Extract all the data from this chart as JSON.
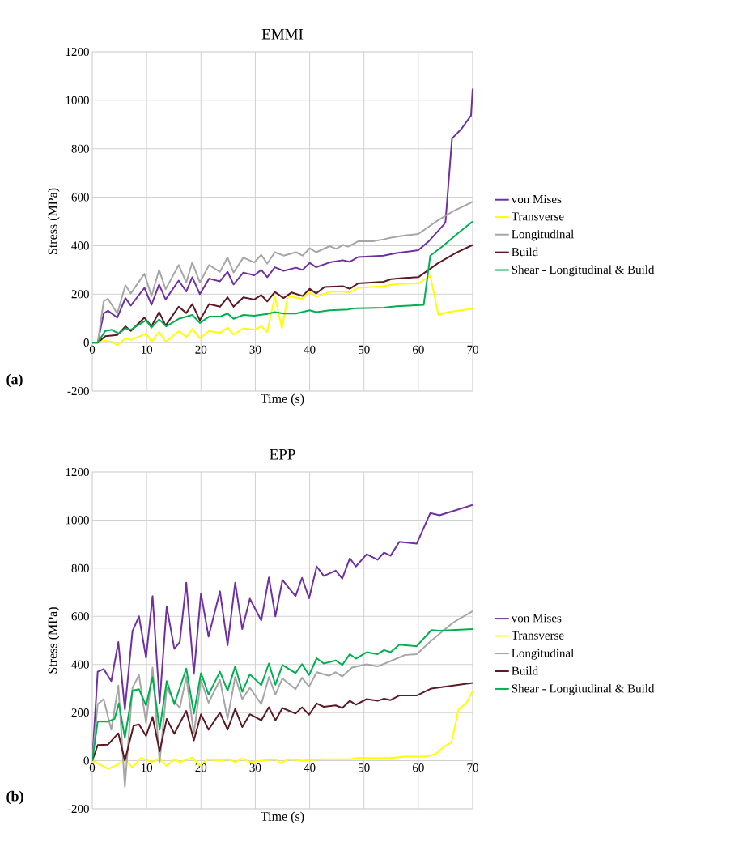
{
  "chart_data": [
    {
      "type": "line",
      "title": "EMMI",
      "xlabel": "Time (s)",
      "ylabel": "Stress (MPa)",
      "xlim": [
        0,
        70
      ],
      "ylim": [
        -200,
        1200
      ],
      "xticks": [
        0,
        10,
        20,
        30,
        40,
        50,
        60,
        70
      ],
      "yticks": [
        -200,
        0,
        200,
        400,
        600,
        800,
        1000,
        1200
      ],
      "grid": true,
      "legend": "right",
      "annotations": [
        "(a)"
      ],
      "series": [
        {
          "name": "von Mises",
          "color": "#7030a0",
          "x": [
            0,
            1,
            2.1,
            2.9,
            4.6,
            6.1,
            7.1,
            9.6,
            10.9,
            12.3,
            13.5,
            15.9,
            17.3,
            18.4,
            19.8,
            21.5,
            23.5,
            24.9,
            26,
            27.8,
            29.8,
            31.1,
            32.2,
            33.6,
            35.2,
            37.5,
            38.7,
            40,
            41.2,
            43.7,
            46.1,
            47.4,
            48.9,
            53.6,
            56,
            60,
            62,
            64.7,
            65,
            66.2,
            67.9,
            69.7,
            70
          ],
          "values": [
            0,
            0,
            120,
            131,
            103,
            184,
            153,
            226,
            156,
            240,
            178,
            256,
            211,
            270,
            200,
            264,
            253,
            292,
            240,
            289,
            278,
            300,
            270,
            311,
            296,
            309,
            300,
            329,
            311,
            331,
            340,
            333,
            353,
            359,
            370,
            381,
            420,
            487,
            498,
            842,
            881,
            937,
            1048
          ]
        },
        {
          "name": "Transverse",
          "color": "#ffff00",
          "x": [
            0,
            1,
            2.4,
            3.6,
            4.6,
            6.1,
            7.1,
            9.9,
            10.9,
            12.3,
            13.5,
            16,
            17.3,
            18.4,
            19.8,
            21.5,
            23.5,
            24.9,
            26,
            27.8,
            29.8,
            31.1,
            32.2,
            33.6,
            34.9,
            36,
            38.7,
            40,
            41.2,
            43.7,
            46.1,
            47.4,
            48.9,
            53.6,
            56,
            60,
            62.2,
            63.7,
            65.4,
            70
          ],
          "values": [
            0,
            0,
            9,
            3,
            -11,
            18,
            11,
            37,
            3,
            44,
            3,
            48,
            22,
            56,
            18,
            48,
            40,
            62,
            33,
            59,
            53,
            67,
            44,
            192,
            59,
            192,
            181,
            209,
            189,
            209,
            211,
            207,
            226,
            233,
            242,
            244,
            276,
            114,
            126,
            140
          ]
        },
        {
          "name": "Longitudinal",
          "color": "#a6a6a6",
          "x": [
            0,
            1,
            2.1,
            2.9,
            4.6,
            6.1,
            7.1,
            9.6,
            10.9,
            12.3,
            13.5,
            15.9,
            17.3,
            18.4,
            19.8,
            21.5,
            23.5,
            24.9,
            26,
            27.8,
            29.8,
            31.1,
            32.2,
            33.6,
            35.2,
            37.5,
            38.7,
            40,
            41.2,
            43.7,
            44.9,
            46.1,
            47.1,
            48.9,
            51.6,
            53.6,
            55,
            57.5,
            60,
            63.5,
            66.4,
            70
          ],
          "values": [
            0,
            0,
            170,
            181,
            120,
            237,
            203,
            284,
            192,
            300,
            220,
            320,
            248,
            331,
            248,
            320,
            292,
            351,
            289,
            351,
            331,
            362,
            326,
            373,
            359,
            373,
            359,
            389,
            373,
            398,
            387,
            403,
            396,
            418,
            418,
            426,
            433,
            442,
            448,
            503,
            542,
            581
          ]
        },
        {
          "name": "Build",
          "color": "#5c1a24",
          "x": [
            0,
            1,
            2.4,
            4.6,
            6.1,
            7.1,
            9.6,
            10.9,
            12.3,
            13.5,
            15.9,
            17.3,
            18.4,
            19.8,
            21.5,
            23.5,
            24.9,
            26,
            27.8,
            29.8,
            31.1,
            32.2,
            33.6,
            35.2,
            36.7,
            38.7,
            40,
            41.2,
            42.7,
            46.1,
            47.4,
            48.9,
            53.6,
            55,
            57.5,
            60,
            63.5,
            66.9,
            70
          ],
          "values": [
            0,
            0,
            26,
            31,
            67,
            48,
            103,
            67,
            126,
            70,
            148,
            122,
            159,
            92,
            159,
            148,
            187,
            148,
            187,
            178,
            196,
            170,
            209,
            184,
            207,
            192,
            222,
            203,
            229,
            233,
            222,
            244,
            251,
            262,
            267,
            270,
            326,
            370,
            403
          ]
        },
        {
          "name": "Shear - Longitudinal & Build",
          "color": "#00b050",
          "x": [
            0,
            1,
            2.4,
            3.6,
            4.9,
            6.1,
            7.1,
            9.9,
            10.9,
            12.3,
            13.6,
            15.9,
            18.4,
            19.8,
            21.5,
            23.5,
            24.9,
            26,
            27.8,
            29.8,
            32.2,
            33.6,
            35.2,
            37.5,
            40,
            41.2,
            43.7,
            47.1,
            48.6,
            53.6,
            56,
            61,
            62.2,
            64.5,
            67.4,
            70
          ],
          "values": [
            0,
            0,
            48,
            53,
            37,
            59,
            53,
            92,
            62,
            96,
            67,
            98,
            114,
            81,
            107,
            107,
            120,
            98,
            114,
            111,
            118,
            126,
            120,
            120,
            133,
            126,
            133,
            137,
            142,
            144,
            150,
            156,
            359,
            398,
            453,
            500
          ]
        }
      ]
    },
    {
      "type": "line",
      "title": "EPP",
      "xlabel": "Time (s)",
      "ylabel": "Stress (MPa)",
      "xlim": [
        0,
        70
      ],
      "ylim": [
        -200,
        1200
      ],
      "xticks": [
        0,
        10,
        20,
        30,
        40,
        50,
        60,
        70
      ],
      "yticks": [
        -200,
        0,
        200,
        400,
        600,
        800,
        1000,
        1200
      ],
      "grid": true,
      "legend": "right",
      "annotations": [
        "(b)"
      ],
      "series": [
        {
          "name": "von Mises",
          "color": "#7030a0",
          "x": [
            0,
            1,
            2.1,
            3.5,
            4.8,
            6,
            7.4,
            8.6,
            9.9,
            11.1,
            12.4,
            13.7,
            15.1,
            16.1,
            17.3,
            18.7,
            20,
            21.4,
            23.5,
            24.9,
            26.3,
            27.6,
            29,
            31.1,
            32.5,
            33.7,
            35,
            37.4,
            38.6,
            39.9,
            41.3,
            42.6,
            44.8,
            46,
            47.4,
            48.5,
            50.5,
            52.5,
            53.7,
            54.9,
            56.5,
            59.7,
            62.2,
            63.9,
            70
          ],
          "values": [
            0,
            370,
            381,
            331,
            493,
            213,
            538,
            600,
            428,
            684,
            241,
            641,
            465,
            493,
            740,
            361,
            695,
            516,
            704,
            480,
            740,
            547,
            673,
            583,
            762,
            600,
            751,
            684,
            760,
            675,
            807,
            768,
            790,
            757,
            841,
            807,
            858,
            835,
            865,
            852,
            910,
            902,
            1029,
            1020,
            1063
          ]
        },
        {
          "name": "Transverse",
          "color": "#ffff00",
          "x": [
            0,
            1,
            2.9,
            4.6,
            5.9,
            7.4,
            8.9,
            11.1,
            12.3,
            13.7,
            15.1,
            16.1,
            18.4,
            19.8,
            21.3,
            23.5,
            25,
            26.3,
            27.6,
            29,
            31.1,
            33.7,
            34.6,
            36.1,
            38.6,
            42.6,
            47.5,
            48.5,
            55,
            57.5,
            61.4,
            63.2,
            64.6,
            66.1,
            67.4,
            68.9,
            70
          ],
          "values": [
            0,
            -11,
            -34,
            -17,
            6,
            -28,
            11,
            -6,
            11,
            -22,
            6,
            -6,
            13,
            -20,
            6,
            0,
            6,
            -6,
            9,
            -6,
            0,
            6,
            -11,
            6,
            0,
            6,
            6,
            11,
            11,
            17,
            17,
            28,
            56,
            76,
            213,
            241,
            291
          ]
        },
        {
          "name": "Longitudinal",
          "color": "#a6a6a6",
          "x": [
            0,
            1,
            2.1,
            3.5,
            4.8,
            6,
            7.4,
            8.6,
            9.9,
            11.1,
            12.4,
            13.7,
            15.1,
            16.1,
            17.3,
            18.7,
            20,
            21.4,
            23.5,
            24.9,
            26.3,
            27.6,
            29,
            31.1,
            32.5,
            33.7,
            35,
            37.4,
            38.6,
            39.9,
            41.3,
            43.6,
            44.8,
            46,
            47.8,
            50.5,
            52.5,
            55,
            57.5,
            59.7,
            62.4,
            66.4,
            70
          ],
          "values": [
            0,
            235,
            256,
            129,
            312,
            -108,
            303,
            356,
            157,
            387,
            -6,
            303,
            247,
            219,
            348,
            112,
            336,
            241,
            336,
            174,
            348,
            256,
            303,
            235,
            348,
            275,
            342,
            297,
            345,
            308,
            368,
            353,
            368,
            350,
            387,
            401,
            392,
            415,
            439,
            443,
            499,
            574,
            622
          ]
        },
        {
          "name": "Build",
          "color": "#5c1a24",
          "x": [
            0,
            1,
            2.9,
            4.8,
            6,
            7.6,
            8.6,
            9.9,
            11.1,
            12.4,
            13.7,
            15.1,
            17.3,
            18.7,
            20,
            21.4,
            23.5,
            24.9,
            26.3,
            27.6,
            29,
            31.1,
            32.5,
            33.7,
            35,
            37.4,
            38.6,
            39.9,
            41.3,
            42.6,
            44.8,
            46,
            47.4,
            48.5,
            50.5,
            52.5,
            53.7,
            54.9,
            56.5,
            59.7,
            62.4,
            70
          ],
          "values": [
            0,
            65,
            67,
            114,
            0,
            146,
            151,
            103,
            182,
            39,
            174,
            112,
            207,
            84,
            193,
            129,
            200,
            129,
            215,
            140,
            193,
            168,
            222,
            168,
            219,
            196,
            222,
            191,
            238,
            224,
            230,
            219,
            249,
            233,
            256,
            249,
            258,
            252,
            271,
            271,
            300,
            323
          ]
        },
        {
          "name": "Shear - Longitudinal & Build",
          "color": "#00b050",
          "x": [
            0,
            1,
            2.9,
            4.1,
            4.9,
            6,
            7.4,
            8.6,
            9.9,
            11.1,
            12.4,
            13.7,
            15.1,
            17.3,
            18.7,
            20,
            21.4,
            23.5,
            24.9,
            26.3,
            27.6,
            29,
            31.1,
            32.5,
            33.7,
            35,
            37.4,
            38.6,
            39.9,
            41.3,
            42.6,
            44.8,
            46,
            47.4,
            48.5,
            50.5,
            52.5,
            53.7,
            54.9,
            56.5,
            59.7,
            62.4,
            63.9,
            70
          ],
          "values": [
            0,
            163,
            163,
            174,
            238,
            95,
            291,
            297,
            230,
            348,
            129,
            331,
            235,
            383,
            196,
            364,
            275,
            370,
            291,
            392,
            286,
            359,
            314,
            404,
            316,
            398,
            364,
            401,
            356,
            426,
            404,
            417,
            398,
            443,
            424,
            451,
            443,
            460,
            451,
            482,
            476,
            543,
            540,
            547
          ]
        }
      ]
    }
  ]
}
